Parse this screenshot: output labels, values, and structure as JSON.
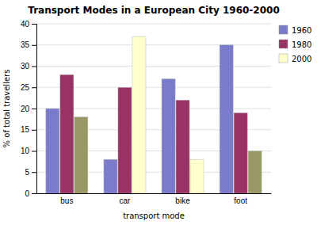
{
  "chart_data": {
    "type": "bar",
    "title": "Transport Modes in a European City 1960-2000",
    "xlabel": "transport mode",
    "ylabel": "% of total travellers",
    "categories": [
      "bus",
      "car",
      "bike",
      "foot"
    ],
    "series": [
      {
        "name": "1960",
        "color": "#7b7bcc",
        "values": [
          20,
          8,
          27,
          35
        ]
      },
      {
        "name": "1980",
        "color": "#993366",
        "values": [
          28,
          25,
          22,
          19
        ]
      },
      {
        "name": "2000",
        "color": "#ffffcc",
        "colors": [
          "#999966",
          "#ffffcc",
          "#ffffcc",
          "#999966"
        ],
        "values": [
          18,
          37,
          8,
          10
        ]
      }
    ],
    "ylim": [
      0,
      40
    ],
    "yticks": [
      0,
      5,
      10,
      15,
      20,
      25,
      30,
      35,
      40
    ],
    "grid": true,
    "legend": "upper right"
  }
}
